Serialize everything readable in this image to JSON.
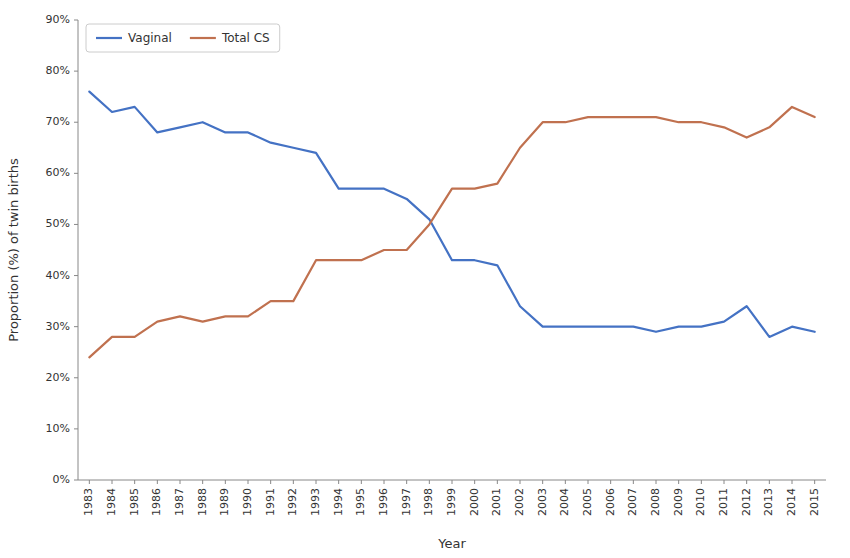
{
  "chart_data": {
    "type": "line",
    "xlabel": "Year",
    "ylabel": "Proportion (%) of twin births",
    "x": [
      1983,
      1984,
      1985,
      1986,
      1987,
      1988,
      1989,
      1990,
      1991,
      1992,
      1993,
      1994,
      1995,
      1996,
      1997,
      1998,
      1999,
      2000,
      2001,
      2002,
      2003,
      2004,
      2005,
      2006,
      2007,
      2008,
      2009,
      2010,
      2011,
      2012,
      2013,
      2014,
      2015
    ],
    "series": [
      {
        "name": "Vaginal",
        "color": "#4472C4",
        "values": [
          76,
          72,
          73,
          68,
          69,
          70,
          68,
          68,
          66,
          65,
          64,
          57,
          57,
          57,
          55,
          51,
          43,
          43,
          42,
          34,
          30,
          30,
          30,
          30,
          30,
          29,
          30,
          30,
          31,
          34,
          28,
          30,
          29
        ]
      },
      {
        "name": "Total CS",
        "color": "#C0714F",
        "values": [
          24,
          28,
          28,
          31,
          32,
          31,
          32,
          32,
          35,
          35,
          43,
          43,
          43,
          45,
          45,
          50,
          57,
          57,
          58,
          65,
          70,
          70,
          71,
          71,
          71,
          71,
          70,
          70,
          69,
          67,
          69,
          73,
          71
        ]
      }
    ],
    "xlim": [
      1982.5,
      2015.5
    ],
    "xticks": [
      1983,
      1984,
      1985,
      1986,
      1987,
      1988,
      1989,
      1990,
      1991,
      1992,
      1993,
      1994,
      1995,
      1996,
      1997,
      1998,
      1999,
      2000,
      2001,
      2002,
      2003,
      2004,
      2005,
      2006,
      2007,
      2008,
      2009,
      2010,
      2011,
      2012,
      2013,
      2014,
      2015
    ],
    "ylim": [
      0,
      90
    ],
    "yticks": [
      {
        "value": 0,
        "label": "0%"
      },
      {
        "value": 10,
        "label": "10%"
      },
      {
        "value": 20,
        "label": "20%"
      },
      {
        "value": 30,
        "label": "30%"
      },
      {
        "value": 40,
        "label": "40%"
      },
      {
        "value": 50,
        "label": "50%"
      },
      {
        "value": 60,
        "label": "60%"
      },
      {
        "value": 70,
        "label": "70%"
      },
      {
        "value": 80,
        "label": "80%"
      },
      {
        "value": 90,
        "label": "90%"
      }
    ],
    "grid": false,
    "legend": "upper left"
  }
}
